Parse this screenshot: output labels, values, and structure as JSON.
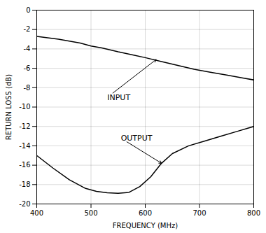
{
  "chart_data": {
    "type": "line",
    "xlabel": "FREQUENCY (MHz)",
    "ylabel": "RETURN LOSS (dB)",
    "xlim": [
      400,
      800
    ],
    "ylim": [
      -20,
      0
    ],
    "xticks": [
      400,
      500,
      600,
      700,
      800
    ],
    "yticks": [
      0,
      -2,
      -4,
      -6,
      -8,
      -10,
      -12,
      -14,
      -16,
      -18,
      -20
    ],
    "grid": true,
    "series": [
      {
        "color": "#000000",
        "x": [
          400,
          440,
          480,
          500,
          520,
          550,
          580,
          600,
          630,
          660,
          690,
          720,
          750,
          780,
          800
        ],
        "values": [
          -2.7,
          -3.0,
          -3.4,
          -3.7,
          -3.9,
          -4.3,
          -4.65,
          -4.9,
          -5.3,
          -5.7,
          -6.1,
          -6.4,
          -6.7,
          -7.0,
          -7.2
        ]
      },
      {
        "color": "#000000",
        "x": [
          400,
          430,
          460,
          490,
          510,
          530,
          550,
          570,
          590,
          610,
          630,
          650,
          680,
          710,
          740,
          770,
          800
        ],
        "values": [
          -15.0,
          -16.3,
          -17.5,
          -18.4,
          -18.7,
          -18.85,
          -18.9,
          -18.8,
          -18.2,
          -17.2,
          -15.8,
          -14.8,
          -14.0,
          -13.5,
          -13.0,
          -12.5,
          -12.0
        ]
      }
    ],
    "annotations": [
      {
        "text": "INPUT",
        "x": 530,
        "y": -9.0,
        "arrow_x": 620,
        "arrow_y": -5.1
      },
      {
        "text": "OUTPUT",
        "x": 555,
        "y": -13.2,
        "arrow_x": 630,
        "arrow_y": -15.8
      }
    ]
  }
}
